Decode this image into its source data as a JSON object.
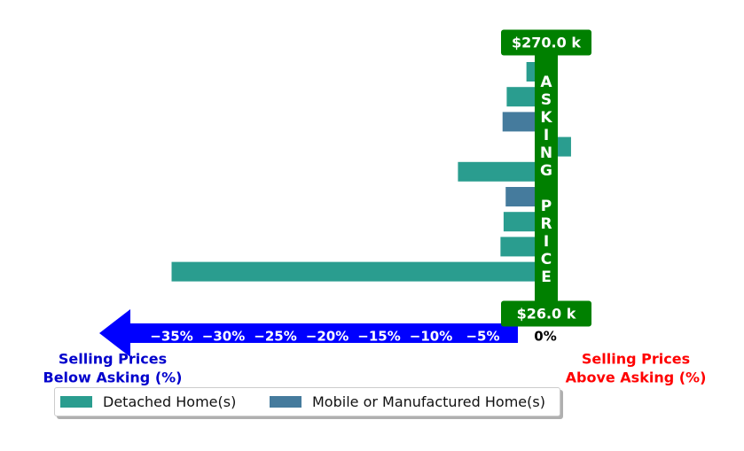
{
  "chart_data": {
    "type": "bar",
    "orientation": "horizontal",
    "series": [
      {
        "name": "Detached Home(s)",
        "color": "#2a9d8f"
      },
      {
        "name": "Mobile or Manufactured Home(s)",
        "color": "#457b9d"
      }
    ],
    "bars": [
      {
        "series": 0,
        "value": -0.8
      },
      {
        "series": 0,
        "value": -2.7
      },
      {
        "series": 1,
        "value": -3.1
      },
      {
        "series": 0,
        "value": 3.5
      },
      {
        "series": 0,
        "value": -7.4
      },
      {
        "series": 1,
        "value": -2.8
      },
      {
        "series": 0,
        "value": -3.0
      },
      {
        "series": 0,
        "value": -3.3
      },
      {
        "series": 0,
        "value": -35.0
      }
    ],
    "xlim": [
      -40,
      6
    ],
    "x_ticks": [
      -35,
      -30,
      -25,
      -20,
      -15,
      -10,
      -5,
      0
    ],
    "x_tick_labels": [
      "−35%",
      "−30%",
      "−25%",
      "−20%",
      "−15%",
      "−10%",
      "−5%",
      "0%"
    ],
    "top_price_label": "$270.0 k",
    "bottom_price_label": "$26.0 k",
    "asking_price_letters": [
      "A",
      "S",
      "K",
      "I",
      "N",
      "G",
      "",
      "P",
      "R",
      "I",
      "C",
      "E"
    ],
    "left_caption": [
      "Selling Prices",
      "Below Asking (%)"
    ],
    "right_caption": [
      "Selling Prices",
      "Above Asking (%)"
    ],
    "colors": {
      "asking_bar": "#008000",
      "arrow": "#0000ff",
      "left_caption": "#0000cc",
      "right_caption": "#ff0000"
    }
  },
  "legend": {
    "items": [
      {
        "label": "Detached Home(s)",
        "color": "#2a9d8f"
      },
      {
        "label": "Mobile or Manufactured Home(s)",
        "color": "#457b9d"
      }
    ]
  }
}
